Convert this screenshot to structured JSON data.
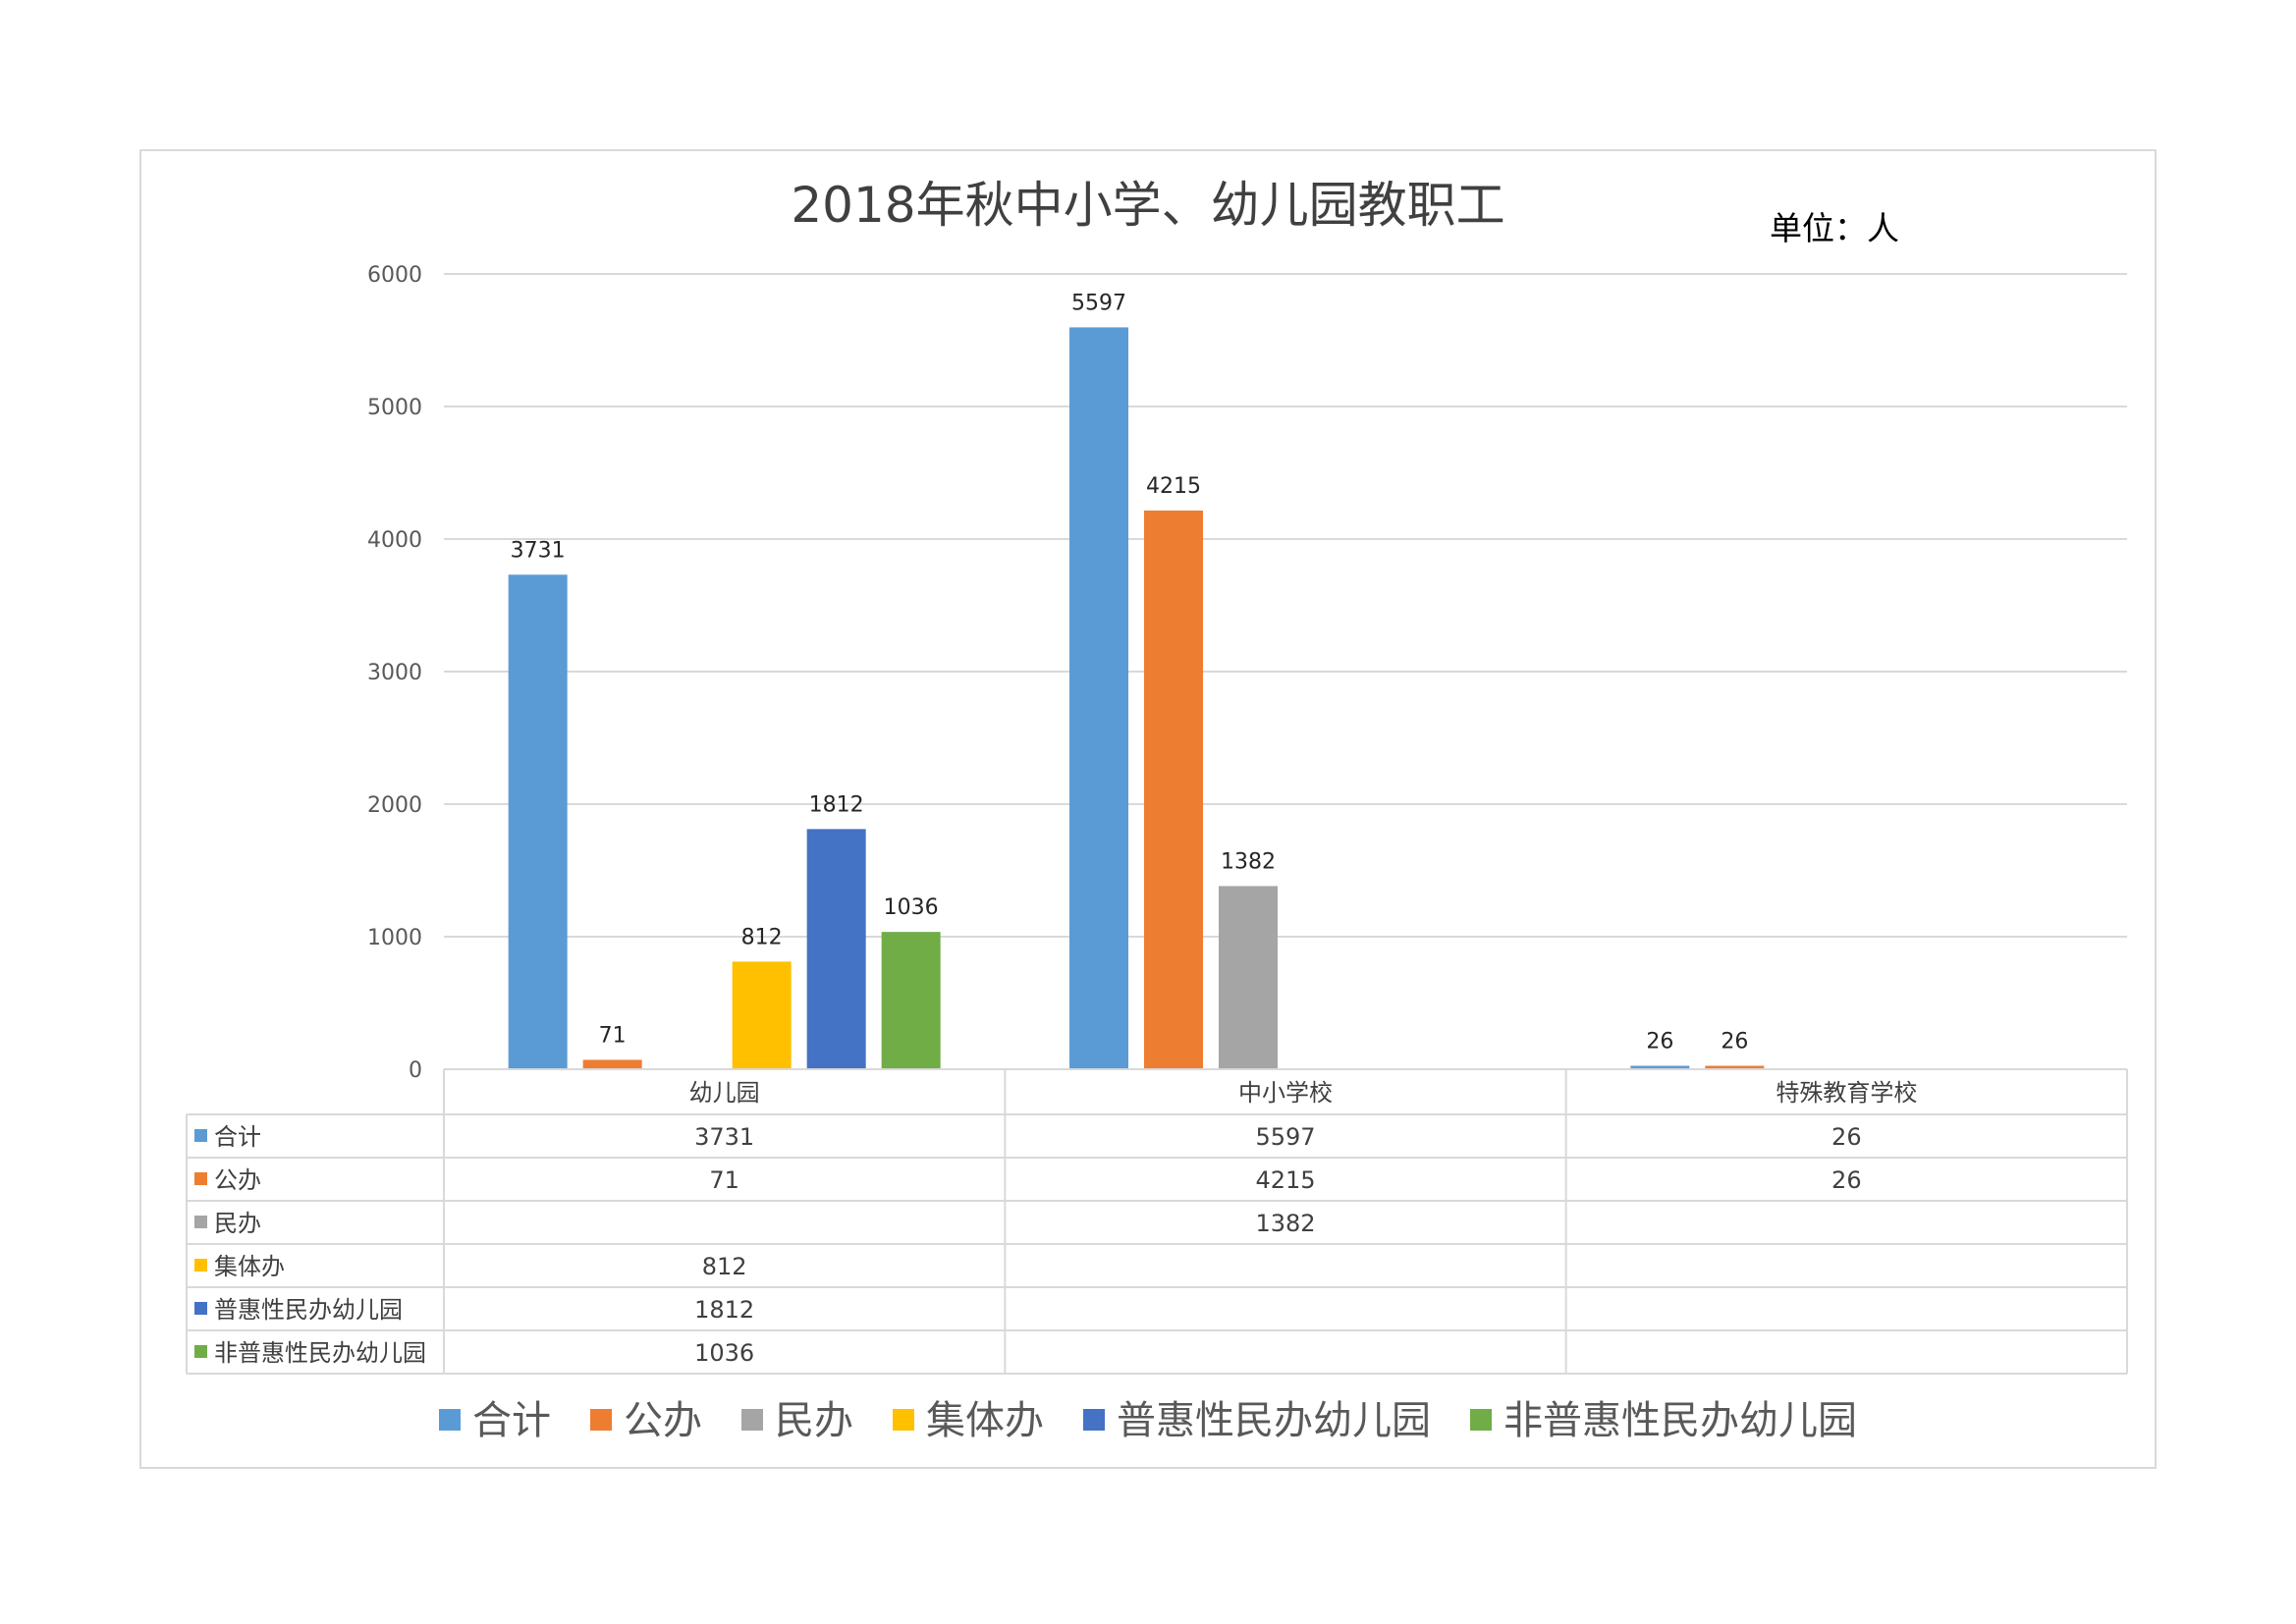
{
  "chart_data": {
    "type": "bar",
    "title": "2018年秋中小学、幼儿园教职工",
    "unit_label": "单位：人",
    "categories": [
      "幼儿园",
      "中小学校",
      "特殊教育学校"
    ],
    "series": [
      {
        "name": "合计",
        "color": "#5b9bd5",
        "values": [
          3731,
          5597,
          26
        ]
      },
      {
        "name": "公办",
        "color": "#ed7d31",
        "values": [
          71,
          4215,
          26
        ]
      },
      {
        "name": "民办",
        "color": "#a5a5a5",
        "values": [
          null,
          1382,
          null
        ]
      },
      {
        "name": "集体办",
        "color": "#ffc000",
        "values": [
          812,
          null,
          null
        ]
      },
      {
        "name": "普惠性民办幼儿园",
        "color": "#4472c4",
        "values": [
          1812,
          null,
          null
        ]
      },
      {
        "name": "非普惠性民办幼儿园",
        "color": "#70ad47",
        "values": [
          1036,
          null,
          null
        ]
      }
    ],
    "yticks": [
      0,
      1000,
      2000,
      3000,
      4000,
      5000,
      6000
    ],
    "ylim": [
      0,
      6000
    ],
    "grid": true,
    "legend": "bottom",
    "data_table": true
  }
}
